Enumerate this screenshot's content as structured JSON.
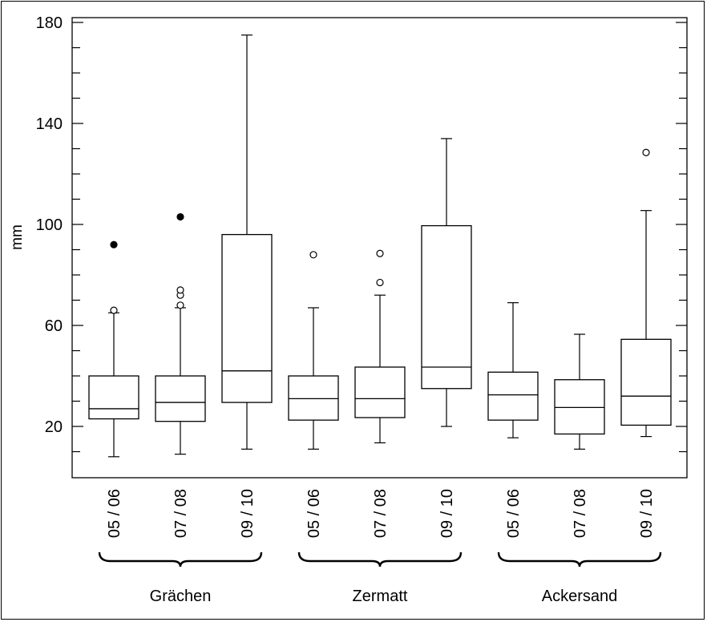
{
  "chart_data": {
    "type": "boxplot",
    "ylabel": "mm",
    "ylim": [
      0,
      183
    ],
    "yticks": [
      20,
      60,
      100,
      140,
      180
    ],
    "groups": [
      {
        "name": "Grächen",
        "categories": [
          "05 / 06",
          "07 / 08",
          "09 / 10"
        ]
      },
      {
        "name": "Zermatt",
        "categories": [
          "05 / 06",
          "07 / 08",
          "09 / 10"
        ]
      },
      {
        "name": "Ackersand",
        "categories": [
          "05 / 06",
          "07 / 08",
          "09 / 10"
        ]
      }
    ],
    "boxes": [
      {
        "group": "Grächen",
        "category": "05 / 06",
        "whisker_low": 8,
        "q1": 23,
        "median": 27,
        "q3": 40,
        "whisker_high": 65,
        "outliers_open": [
          66
        ],
        "outliers_filled": [
          92
        ]
      },
      {
        "group": "Grächen",
        "category": "07 / 08",
        "whisker_low": 9,
        "q1": 22,
        "median": 29.5,
        "q3": 40,
        "whisker_high": 67,
        "outliers_open": [
          68,
          72,
          74
        ],
        "outliers_filled": [
          103
        ]
      },
      {
        "group": "Grächen",
        "category": "09 / 10",
        "whisker_low": 11,
        "q1": 29.5,
        "median": 42,
        "q3": 96,
        "whisker_high": 175,
        "outliers_open": [],
        "outliers_filled": []
      },
      {
        "group": "Zermatt",
        "category": "05 / 06",
        "whisker_low": 11,
        "q1": 22.5,
        "median": 31,
        "q3": 40,
        "whisker_high": 67,
        "outliers_open": [
          88
        ],
        "outliers_filled": []
      },
      {
        "group": "Zermatt",
        "category": "07 / 08",
        "whisker_low": 13.5,
        "q1": 23.5,
        "median": 31,
        "q3": 43.5,
        "whisker_high": 72,
        "outliers_open": [
          77,
          88.5
        ],
        "outliers_filled": []
      },
      {
        "group": "Zermatt",
        "category": "09 / 10",
        "whisker_low": 20,
        "q1": 35,
        "median": 43.5,
        "q3": 99.5,
        "whisker_high": 134,
        "outliers_open": [],
        "outliers_filled": []
      },
      {
        "group": "Ackersand",
        "category": "05 / 06",
        "whisker_low": 15.5,
        "q1": 22.5,
        "median": 32.5,
        "q3": 41.5,
        "whisker_high": 69,
        "outliers_open": [],
        "outliers_filled": []
      },
      {
        "group": "Ackersand",
        "category": "07 / 08",
        "whisker_low": 11,
        "q1": 17,
        "median": 27.5,
        "q3": 38.5,
        "whisker_high": 56.5,
        "outliers_open": [],
        "outliers_filled": []
      },
      {
        "group": "Ackersand",
        "category": "09 / 10",
        "whisker_low": 16,
        "q1": 20.5,
        "median": 32,
        "q3": 54.5,
        "whisker_high": 105.5,
        "outliers_open": [
          128.5
        ],
        "outliers_filled": []
      }
    ]
  }
}
